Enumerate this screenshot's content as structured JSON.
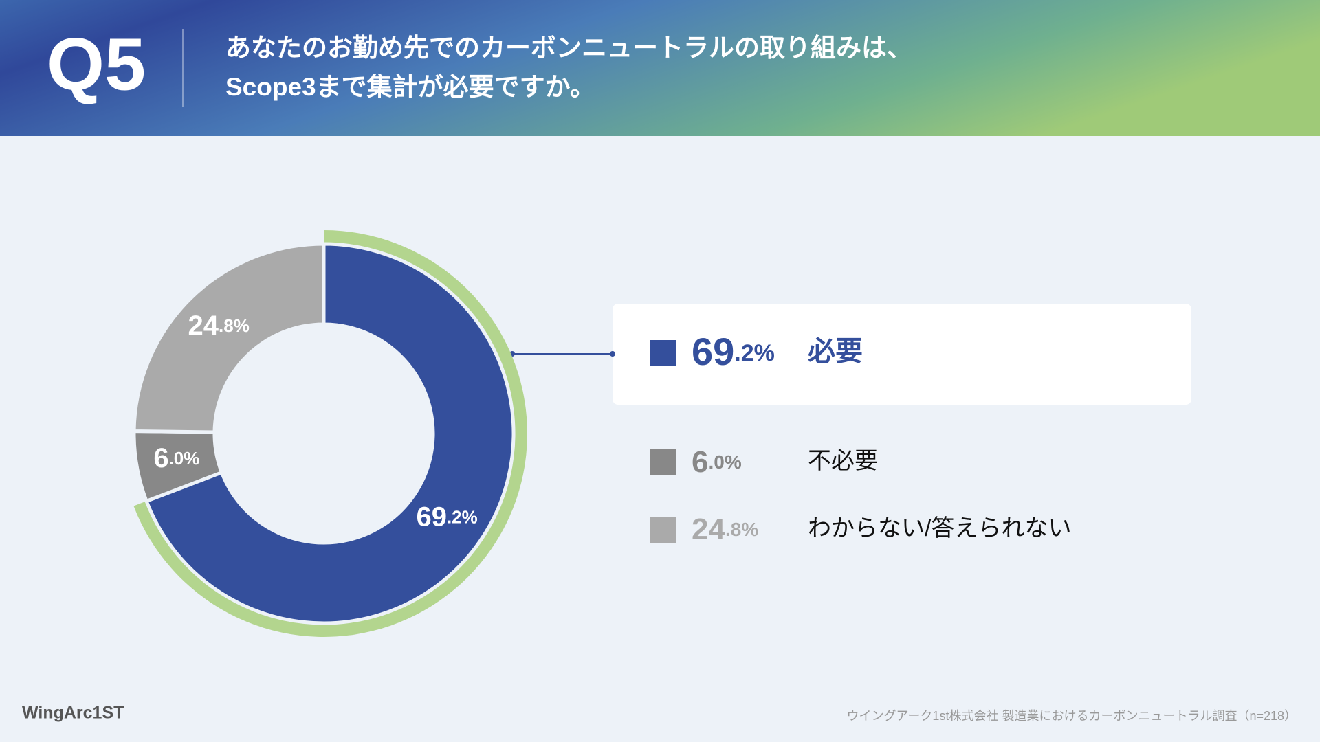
{
  "header": {
    "label": "Q5",
    "question": [
      "あなたのお勤め先でのカーボンニュートラルの取り組みは、",
      "Scope3まで集計が必要ですか。"
    ]
  },
  "chart_data": {
    "type": "donut",
    "categories": [
      "必要",
      "不必要",
      "わからない/答えられない"
    ],
    "values": [
      69.2,
      6.0,
      24.8
    ],
    "value_labels": [
      "69.2%",
      "6.0%",
      "24.8%"
    ],
    "colors": [
      "#344f9c",
      "#888888",
      "#aaaaaa"
    ],
    "highlight": 0,
    "highlight_color": "#b3d58e"
  },
  "footer": {
    "logo": "WingArc1ST",
    "source": "ウイングアーク1st株式会社 製造業におけるカーボンニュートラル調査（n=218）"
  }
}
